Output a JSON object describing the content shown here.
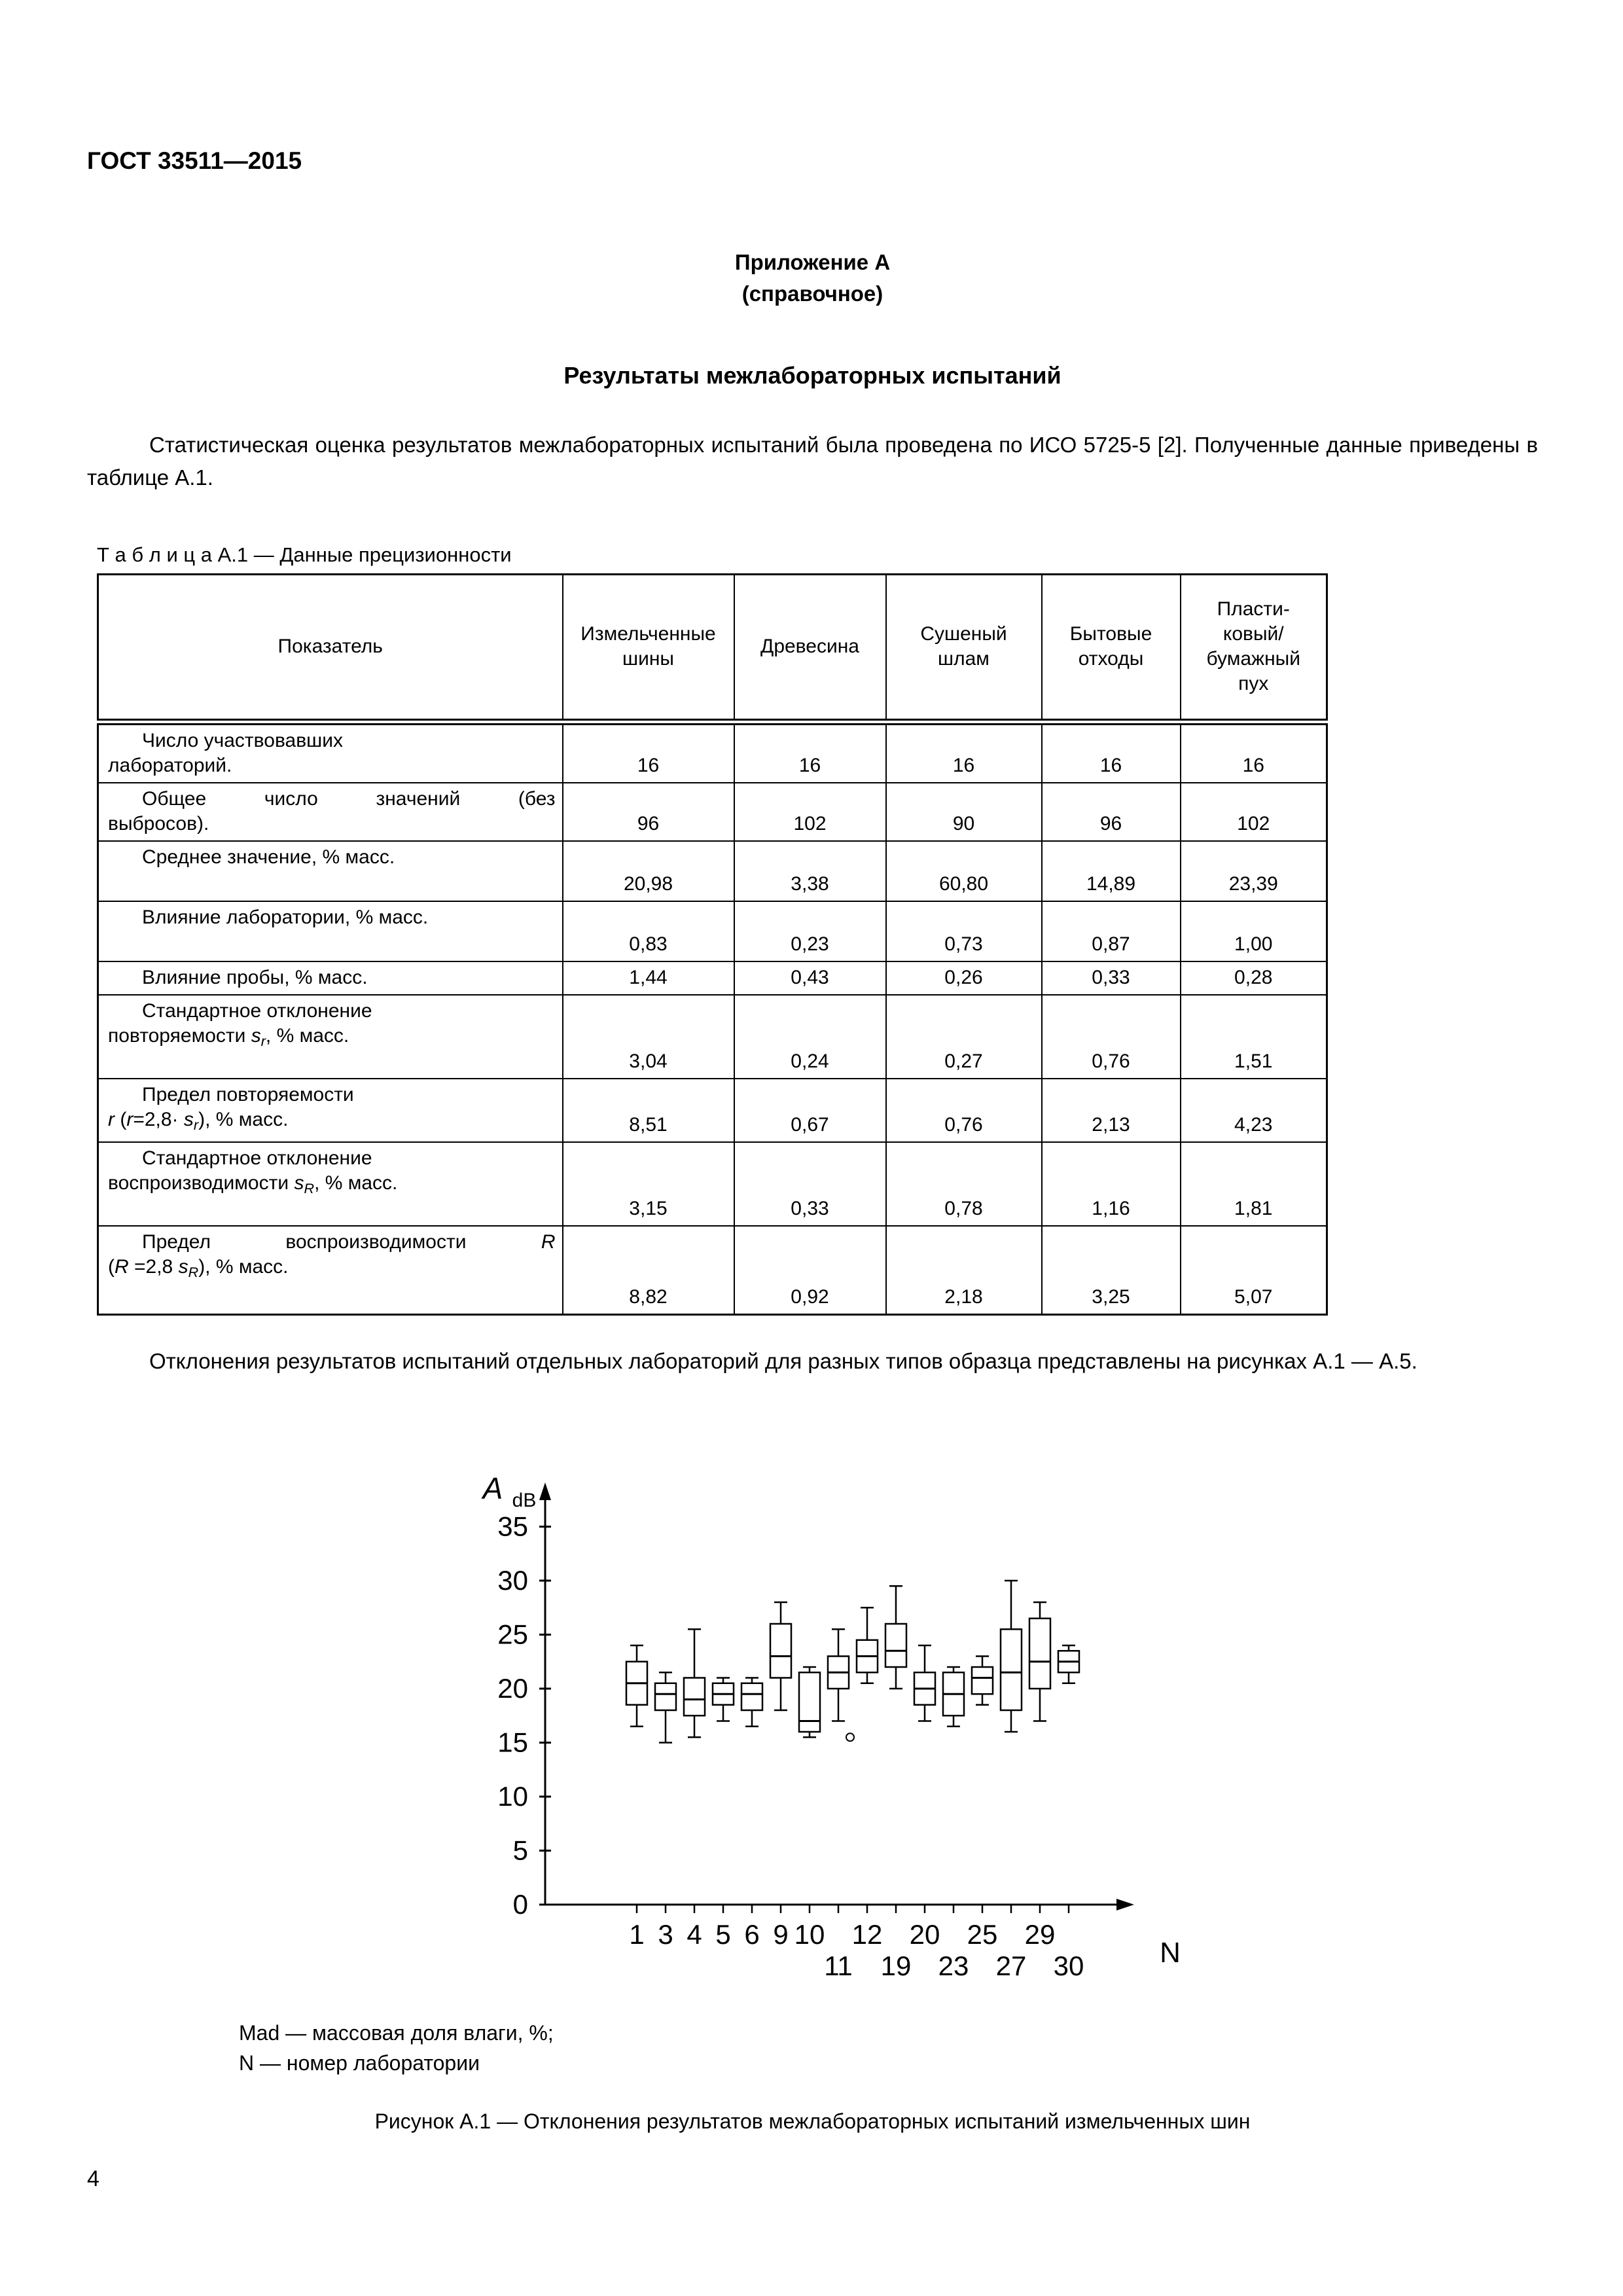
{
  "header": {
    "doc_number": "ГОСТ 33511—2015"
  },
  "appendix": {
    "title": "Приложение А",
    "subtitle": "(справочное)",
    "section_title": "Результаты межлабораторных испытаний"
  },
  "paragraphs": {
    "intro": "Статистическая оценка результатов межлабораторных испытаний была проведена по ИСО 5725-5 [2]. Полученные данные приведены в таблице А.1.",
    "figures": "Отклонения результатов испытаний отдельных лабораторий для разных типов образца представлены на рисунках А.1 — А.5."
  },
  "table": {
    "caption": "Т а б л и ц а  А.1 — Данные прецизионности",
    "columns": [
      "Показатель",
      "Измельченные\nшины",
      "Древесина",
      "Сушеный\nшлам",
      "Бытовые\nотходы",
      "Пласти-\nковый/\nбумажный\nпух"
    ],
    "rows": [
      {
        "h": 84,
        "lines": [
          {
            "ind": true,
            "segs": [
              {
                "v": "Число участвовавших"
              }
            ]
          },
          {
            "segs": [
              {
                "v": "лабораторий."
              }
            ]
          }
        ],
        "values": [
          "16",
          "16",
          "16",
          "16",
          "16"
        ]
      },
      {
        "h": 84,
        "lines": [
          {
            "ind": true,
            "j": true,
            "segs": [
              {
                "v": "Общее число значений (без"
              }
            ]
          },
          {
            "segs": [
              {
                "v": "выбросов)."
              }
            ]
          }
        ],
        "values": [
          "96",
          "102",
          "90",
          "96",
          "102"
        ]
      },
      {
        "h": 92,
        "lines": [
          {
            "ind": true,
            "segs": [
              {
                "v": "Среднее значение, % масс."
              }
            ]
          }
        ],
        "values": [
          "20,98",
          "3,38",
          "60,80",
          "14,89",
          "23,39"
        ]
      },
      {
        "h": 92,
        "lines": [
          {
            "ind": true,
            "segs": [
              {
                "v": "Влияние лаборатории, % масс."
              }
            ]
          }
        ],
        "values": [
          "0,83",
          "0,23",
          "0,73",
          "0,87",
          "1,00"
        ]
      },
      {
        "h": 46,
        "lines": [
          {
            "ind": true,
            "segs": [
              {
                "v": "Влияние пробы, % масс."
              }
            ]
          }
        ],
        "values": [
          "1,44",
          "0,43",
          "0,26",
          "0,33",
          "0,28"
        ]
      },
      {
        "h": 128,
        "lines": [
          {
            "ind": true,
            "segs": [
              {
                "v": "Стандартное отклонение"
              }
            ]
          },
          {
            "segs": [
              {
                "v": "повторяемости "
              },
              {
                "v": "s",
                "st": "i"
              },
              {
                "v": "r",
                "st": "sub"
              },
              {
                "v": ", % масс."
              }
            ]
          }
        ],
        "values": [
          "3,04",
          "0,24",
          "0,27",
          "0,76",
          "1,51"
        ]
      },
      {
        "h": 86,
        "lines": [
          {
            "ind": true,
            "segs": [
              {
                "v": "Предел повторяемости"
              }
            ]
          },
          {
            "segs": [
              {
                "v": "r",
                "st": "i"
              },
              {
                "v": " ("
              },
              {
                "v": "r",
                "st": "i"
              },
              {
                "v": "=2,8· "
              },
              {
                "v": "s",
                "st": "i"
              },
              {
                "v": "r",
                "st": "sub"
              },
              {
                "v": "), % масс."
              }
            ]
          }
        ],
        "values": [
          "8,51",
          "0,67",
          "0,76",
          "2,13",
          "4,23"
        ]
      },
      {
        "h": 128,
        "lines": [
          {
            "ind": true,
            "segs": [
              {
                "v": "Стандартное отклонение"
              }
            ]
          },
          {
            "segs": [
              {
                "v": "воспроизводимости "
              },
              {
                "v": "s",
                "st": "i"
              },
              {
                "v": "R",
                "st": "sub"
              },
              {
                "v": ", % масс."
              }
            ]
          }
        ],
        "values": [
          "3,15",
          "0,33",
          "0,78",
          "1,16",
          "1,81"
        ]
      },
      {
        "h": 136,
        "lines": [
          {
            "ind": true,
            "j": true,
            "segs": [
              {
                "v": "Предел воспроизводимости "
              },
              {
                "v": "R",
                "st": "i"
              }
            ]
          },
          {
            "segs": [
              {
                "v": "("
              },
              {
                "v": "R",
                "st": "i"
              },
              {
                "v": " =2,8 "
              },
              {
                "v": "s",
                "st": "i"
              },
              {
                "v": "R",
                "st": "sub"
              },
              {
                "v": "), % масс."
              }
            ]
          }
        ],
        "values": [
          "8,82",
          "0,92",
          "2,18",
          "3,25",
          "5,07"
        ]
      }
    ]
  },
  "chart_data": {
    "type": "boxplot",
    "ylabel_main": "A",
    "ylabel_sub": "dB",
    "xlabel": "N",
    "y_ticks": [
      0,
      5,
      10,
      15,
      20,
      25,
      30,
      35
    ],
    "ylim": [
      0,
      37
    ],
    "grid": false,
    "labs": [
      "1",
      "3",
      "4",
      "5",
      "6",
      "9",
      "10",
      "11",
      "12",
      "19",
      "20",
      "23",
      "25",
      "27",
      "29",
      "30"
    ],
    "label_row": [
      0,
      0,
      0,
      0,
      0,
      0,
      0,
      1,
      0,
      1,
      0,
      1,
      0,
      1,
      0,
      1
    ],
    "boxes": [
      {
        "lab": "1",
        "low": 16.5,
        "q1": 18.5,
        "median": 20.5,
        "q3": 22.5,
        "high": 24
      },
      {
        "lab": "3",
        "low": 15,
        "q1": 18,
        "median": 19.5,
        "q3": 20.5,
        "high": 21.5
      },
      {
        "lab": "4",
        "low": 15.5,
        "q1": 17.5,
        "median": 19,
        "q3": 21,
        "high": 25.5
      },
      {
        "lab": "5",
        "low": 17,
        "q1": 18.5,
        "median": 19.5,
        "q3": 20.5,
        "high": 21
      },
      {
        "lab": "6",
        "low": 16.5,
        "q1": 18,
        "median": 19.5,
        "q3": 20.5,
        "high": 21
      },
      {
        "lab": "9",
        "low": 18,
        "q1": 21,
        "median": 23,
        "q3": 26,
        "high": 28
      },
      {
        "lab": "10",
        "low": 15.5,
        "q1": 16,
        "median": 17,
        "q3": 21.5,
        "high": 22
      },
      {
        "lab": "11",
        "low": 17,
        "q1": 20,
        "median": 21.5,
        "q3": 23,
        "high": 25.5
      },
      {
        "lab": "12",
        "low": 20.5,
        "q1": 21.5,
        "median": 23,
        "q3": 24.5,
        "high": 27.5,
        "outliers": [
          15.5
        ]
      },
      {
        "lab": "19",
        "low": 20,
        "q1": 22,
        "median": 23.5,
        "q3": 26,
        "high": 29.5
      },
      {
        "lab": "20",
        "low": 17,
        "q1": 18.5,
        "median": 20,
        "q3": 21.5,
        "high": 24
      },
      {
        "lab": "23",
        "low": 16.5,
        "q1": 17.5,
        "median": 19.5,
        "q3": 21.5,
        "high": 22
      },
      {
        "lab": "25",
        "low": 18.5,
        "q1": 19.5,
        "median": 21,
        "q3": 22,
        "high": 23
      },
      {
        "lab": "27",
        "low": 16,
        "q1": 18,
        "median": 21.5,
        "q3": 25.5,
        "high": 30
      },
      {
        "lab": "29",
        "low": 17,
        "q1": 20,
        "median": 22.5,
        "q3": 26.5,
        "high": 28
      },
      {
        "lab": "30",
        "low": 20.5,
        "q1": 21.5,
        "median": 22.5,
        "q3": 23.5,
        "high": 24
      }
    ]
  },
  "figure": {
    "legend": [
      "Mad — массовая доля влаги, %;",
      "N — номер лаборатории"
    ],
    "caption": "Рисунок А.1 — Отклонения результатов межлабораторных испытаний измельченных шин"
  },
  "footer": {
    "page_number": "4"
  }
}
